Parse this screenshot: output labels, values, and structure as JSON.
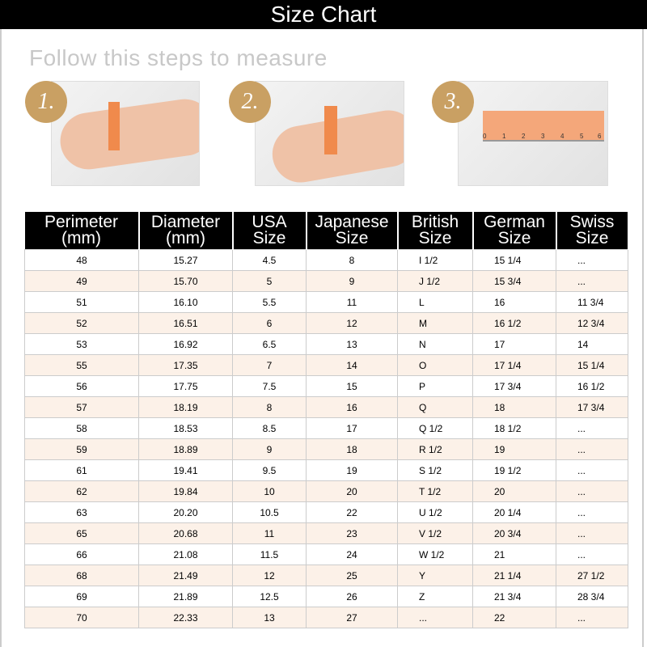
{
  "title": "Size Chart",
  "subtitle": "Follow this steps to measure",
  "steps": [
    "1.",
    "2.",
    "3."
  ],
  "ruler_ticks": [
    "0",
    "1",
    "2",
    "3",
    "4",
    "5",
    "6"
  ],
  "headers": [
    [
      "Perimeter",
      "(mm)"
    ],
    [
      "Diameter",
      "(mm)"
    ],
    [
      "USA",
      "Size"
    ],
    [
      "Japanese",
      "Size"
    ],
    [
      "British",
      "Size"
    ],
    [
      "German",
      "Size"
    ],
    [
      "Swiss",
      "Size"
    ]
  ],
  "rows": [
    [
      "48",
      "15.27",
      "4.5",
      "8",
      "I 1/2",
      "15 1/4",
      "..."
    ],
    [
      "49",
      "15.70",
      "5",
      "9",
      "J 1/2",
      "15 3/4",
      "..."
    ],
    [
      "51",
      "16.10",
      "5.5",
      "11",
      "L",
      "16",
      "11 3/4"
    ],
    [
      "52",
      "16.51",
      "6",
      "12",
      "M",
      "16 1/2",
      "12 3/4"
    ],
    [
      "53",
      "16.92",
      "6.5",
      "13",
      "N",
      "17",
      "14"
    ],
    [
      "55",
      "17.35",
      "7",
      "14",
      "O",
      "17 1/4",
      "15 1/4"
    ],
    [
      "56",
      "17.75",
      "7.5",
      "15",
      "P",
      "17 3/4",
      "16 1/2"
    ],
    [
      "57",
      "18.19",
      "8",
      "16",
      "Q",
      "18",
      "17 3/4"
    ],
    [
      "58",
      "18.53",
      "8.5",
      "17",
      "Q 1/2",
      "18 1/2",
      "..."
    ],
    [
      "59",
      "18.89",
      "9",
      "18",
      "R 1/2",
      "19",
      "..."
    ],
    [
      "61",
      "19.41",
      "9.5",
      "19",
      "S 1/2",
      "19 1/2",
      "..."
    ],
    [
      "62",
      "19.84",
      "10",
      "20",
      "T 1/2",
      "20",
      "..."
    ],
    [
      "63",
      "20.20",
      "10.5",
      "22",
      "U 1/2",
      "20 1/4",
      "..."
    ],
    [
      "65",
      "20.68",
      "11",
      "23",
      "V 1/2",
      "20 3/4",
      "..."
    ],
    [
      "66",
      "21.08",
      "11.5",
      "24",
      "W 1/2",
      "21",
      "..."
    ],
    [
      "68",
      "21.49",
      "12",
      "25",
      "Y",
      "21 1/4",
      "27 1/2"
    ],
    [
      "69",
      "21.89",
      "12.5",
      "26",
      "Z",
      "21 3/4",
      "28 3/4"
    ],
    [
      "70",
      "22.33",
      "13",
      "27",
      "...",
      "22",
      "..."
    ]
  ],
  "colors": {
    "header_bg": "#000000",
    "row_alt": "#fcf1e8",
    "badge": "#c9a063",
    "tape": "#f08a4c"
  }
}
